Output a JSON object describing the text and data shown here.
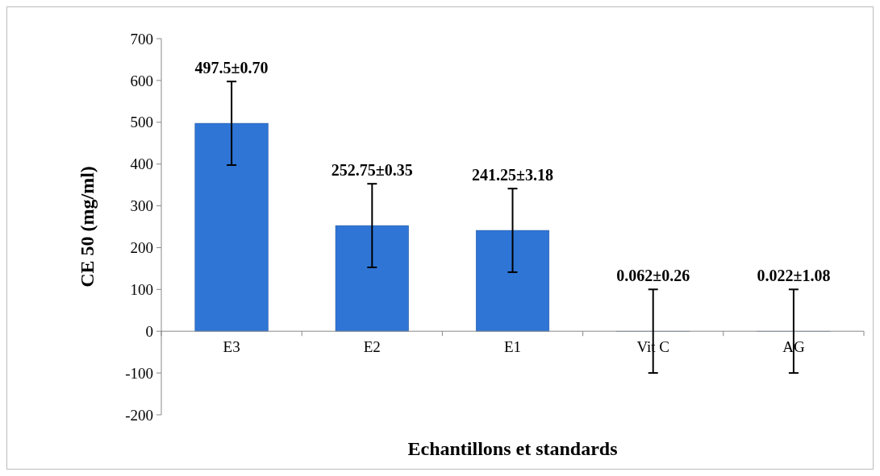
{
  "chart_data": {
    "type": "bar",
    "xlabel": "Echantillons et standards",
    "ylabel": "CE 50 (mg/ml)",
    "categories": [
      "E3",
      "E2",
      "E1",
      "Vit C",
      "AG"
    ],
    "values": [
      497.5,
      252.75,
      241.25,
      0.062,
      0.022
    ],
    "errors": [
      100,
      100,
      100,
      100,
      100
    ],
    "value_labels": [
      "497.5±0.70",
      "252.75±0.35",
      "241.25±3.18",
      "0.062±0.26",
      "0.022±1.08"
    ],
    "color": "#2e75d6",
    "ylim": [
      -200,
      700
    ],
    "yticks": [
      -200,
      -100,
      0,
      100,
      200,
      300,
      400,
      500,
      600,
      700
    ],
    "grid": false
  }
}
